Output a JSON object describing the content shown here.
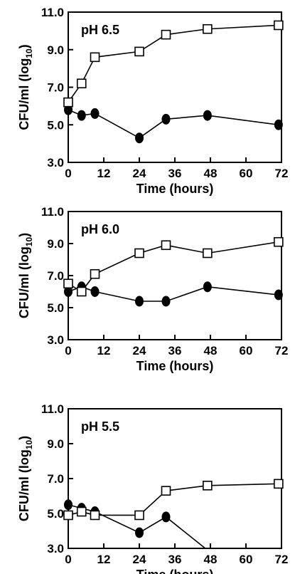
{
  "chart_data": [
    {
      "type": "line",
      "title": "",
      "annotation": "pH 6.5",
      "xlabel": "Time (hours)",
      "ylabel_main": "CFU/ml (log",
      "ylabel_sub": "10",
      "ylabel_end": ")",
      "xlim": [
        0,
        72
      ],
      "ylim": [
        3.0,
        11.0
      ],
      "xticks": [
        "0",
        "12",
        "24",
        "36",
        "48",
        "60",
        "72"
      ],
      "yticks": [
        "3.0",
        "5.0",
        "7.0",
        "9.0",
        "11.0"
      ],
      "series": [
        {
          "marker": "open-square",
          "x": [
            0,
            4.5,
            9,
            24,
            33,
            47,
            71
          ],
          "y": [
            6.2,
            7.2,
            8.6,
            8.9,
            9.8,
            10.1,
            10.3
          ]
        },
        {
          "marker": "filled-circle",
          "x": [
            0,
            4.5,
            9,
            24,
            33,
            47,
            71
          ],
          "y": [
            5.8,
            5.5,
            5.6,
            4.3,
            5.3,
            5.5,
            5.0
          ]
        }
      ]
    },
    {
      "type": "line",
      "title": "",
      "annotation": "pH 6.0",
      "xlabel": "Time (hours)",
      "ylabel_main": "CFU/ml (log",
      "ylabel_sub": "10",
      "ylabel_end": ")",
      "xlim": [
        0,
        72
      ],
      "ylim": [
        3.0,
        11.0
      ],
      "xticks": [
        "0",
        "12",
        "24",
        "36",
        "48",
        "60",
        "72"
      ],
      "yticks": [
        "3.0",
        "5.0",
        "7.0",
        "9.0",
        "11.0"
      ],
      "series": [
        {
          "marker": "open-square",
          "x": [
            0,
            4.5,
            9,
            24,
            33,
            47,
            71
          ],
          "y": [
            6.5,
            6.0,
            7.1,
            8.4,
            8.9,
            8.4,
            9.1
          ]
        },
        {
          "marker": "filled-circle",
          "x": [
            0,
            4.5,
            9,
            24,
            33,
            47,
            71
          ],
          "y": [
            6.0,
            6.3,
            6.0,
            5.4,
            5.4,
            6.3,
            5.8
          ]
        }
      ]
    },
    {
      "type": "line",
      "title": "",
      "annotation": "pH 5.5",
      "xlabel": "Time (hours)",
      "ylabel_main": "CFU/ml (log",
      "ylabel_sub": "10",
      "ylabel_end": ")",
      "xlim": [
        0,
        72
      ],
      "ylim": [
        3.0,
        11.0
      ],
      "xticks": [
        "0",
        "12",
        "24",
        "36",
        "48",
        "60",
        "72"
      ],
      "yticks": [
        "3.0",
        "5.0",
        "7.0",
        "9.0",
        "11.0"
      ],
      "series": [
        {
          "marker": "open-square",
          "x": [
            0,
            4.5,
            9,
            24,
            33,
            47,
            71
          ],
          "y": [
            4.9,
            5.1,
            4.9,
            4.9,
            6.3,
            6.6,
            6.7
          ]
        },
        {
          "marker": "filled-circle",
          "x": [
            0,
            4.5,
            9,
            24,
            33,
            47
          ],
          "y": [
            5.5,
            5.3,
            5.1,
            3.9,
            4.8,
            2.9
          ]
        }
      ]
    }
  ]
}
